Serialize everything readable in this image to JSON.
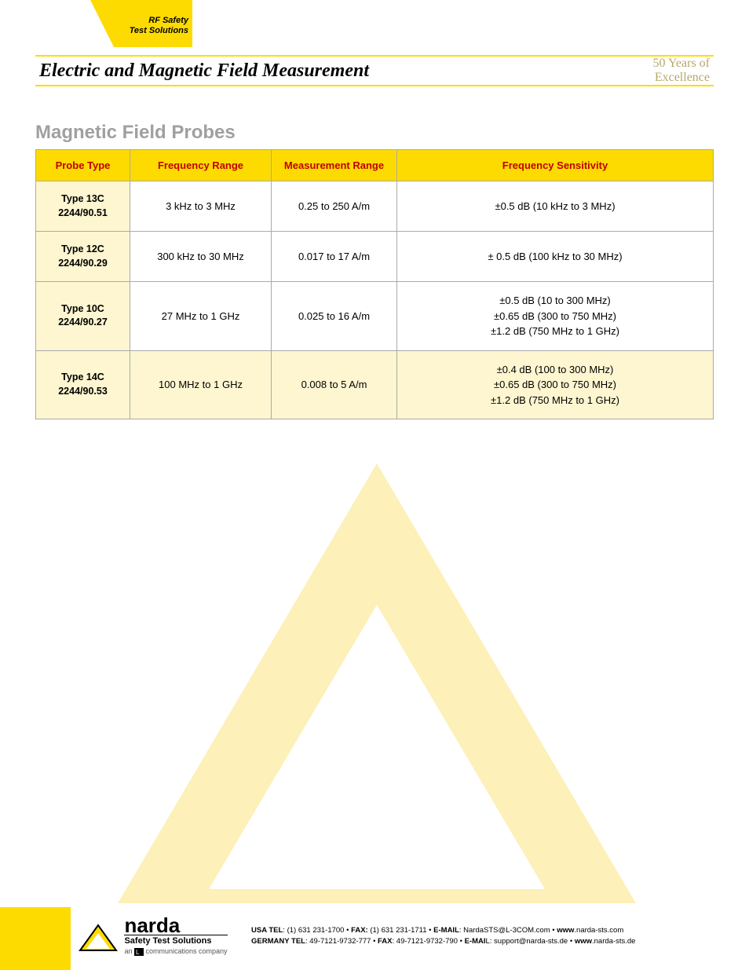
{
  "top_tag": {
    "line1": "RF Safety",
    "line2": "Test Solutions"
  },
  "header": {
    "title": "Electric and Magnetic Field Measurement",
    "tagline_line1": "50 Years of",
    "tagline_line2": "Excellence"
  },
  "section_title": "Magnetic Field Probes",
  "table": {
    "header_bg": "#fddb00",
    "header_text_color": "#c00000",
    "border_color": "#aaaaaa",
    "alt_row_bg": "#fdf6d0",
    "columns": [
      "Probe Type",
      "Frequency Range",
      "Measurement Range",
      "Frequency Sensitivity"
    ],
    "rows": [
      {
        "type_line1": "Type 13C",
        "type_line2": "2244/90.51",
        "freq": "3 kHz to 3 MHz",
        "meas": "0.25 to 250 A/m",
        "sens": [
          "±0.5 dB (10 kHz to 3 MHz)"
        ],
        "highlight": false
      },
      {
        "type_line1": "Type 12C",
        "type_line2": "2244/90.29",
        "freq": "300 kHz to 30 MHz",
        "meas": "0.017 to 17 A/m",
        "sens": [
          "± 0.5 dB (100 kHz to 30 MHz)"
        ],
        "highlight": false
      },
      {
        "type_line1": "Type 10C",
        "type_line2": "2244/90.27",
        "freq": "27 MHz to 1 GHz",
        "meas": "0.025 to 16 A/m",
        "sens": [
          "±0.5 dB (10 to 300 MHz)",
          "±0.65 dB (300 to 750 MHz)",
          "±1.2 dB (750 MHz to 1 GHz)"
        ],
        "highlight": false
      },
      {
        "type_line1": "Type 14C",
        "type_line2": "2244/90.53",
        "freq": "100 MHz to 1 GHz",
        "meas": "0.008 to 5 A/m",
        "sens": [
          "±0.4 dB (100 to 300 MHz)",
          "±0.65 dB (300 to 750 MHz)",
          "±1.2 dB (750 MHz to 1 GHz)"
        ],
        "highlight": true
      }
    ]
  },
  "triangle": {
    "outer_color": "#fdf0b8",
    "inner_color": "#ffffff"
  },
  "footer": {
    "logo_name": "narda",
    "logo_sub": "Safety Test Solutions",
    "logo_sub2_prefix": "an ",
    "logo_sub2_suffix": " communications company",
    "contact_line1_label_usa": "USA  TEL",
    "contact_line1_usa_tel": ": (1) 631 231-1700 • ",
    "contact_line1_label_fax": "FAX:",
    "contact_line1_fax": " (1) 631 231-1711 • ",
    "contact_line1_label_email": "E-MAIL",
    "contact_line1_email": ": NardaSTS@L-3COM.com • ",
    "contact_line1_label_www": "www",
    "contact_line1_www": ".narda-sts.com",
    "contact_line2_label_ger": "GERMANY  TEL",
    "contact_line2_ger_tel": ": 49-7121-9732-777 • ",
    "contact_line2_label_fax": "FAX",
    "contact_line2_fax": ": 49-7121-9732-790 • ",
    "contact_line2_label_email": "E-MAI",
    "contact_line2_email_l": "L: support@narda-sts.de • ",
    "contact_line2_label_www": "www",
    "contact_line2_www": ".narda-sts.de"
  },
  "colors": {
    "brand_yellow": "#fddb00",
    "pale_yellow": "#fdf6d0",
    "header_red": "#c00000",
    "grey_title": "#a0a0a0",
    "tagline": "#b8a868"
  }
}
